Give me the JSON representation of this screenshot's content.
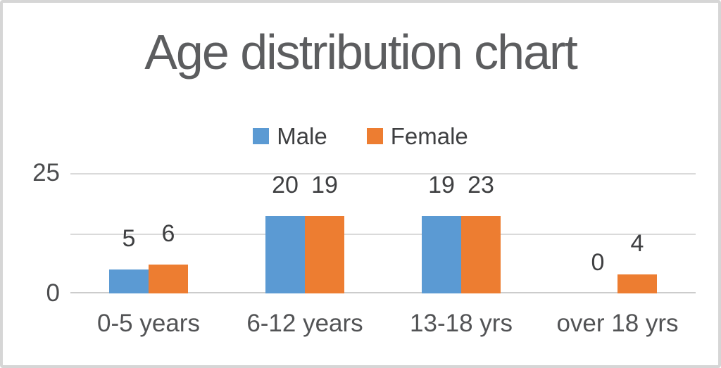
{
  "chart_data": {
    "type": "bar",
    "title": "Age distribution chart",
    "categories": [
      "0-5 years",
      "6-12 years",
      "13-18 yrs",
      "over 18 yrs"
    ],
    "series": [
      {
        "name": "Male",
        "color": "#5b9ad3",
        "values": [
          5,
          20,
          19,
          0
        ]
      },
      {
        "name": "Female",
        "color": "#ed7d31",
        "values": [
          6,
          19,
          23,
          4
        ]
      }
    ],
    "ylim": [
      0,
      25
    ],
    "yticks": [
      {
        "value": 25,
        "label": "25"
      },
      {
        "value": 12.5,
        "label": ""
      },
      {
        "value": 0,
        "label": "0"
      }
    ],
    "data_labels": true,
    "legend_position": "top-center",
    "grid": "horizontal",
    "background": "#ffffff",
    "border_color": "#d6d6d6"
  }
}
